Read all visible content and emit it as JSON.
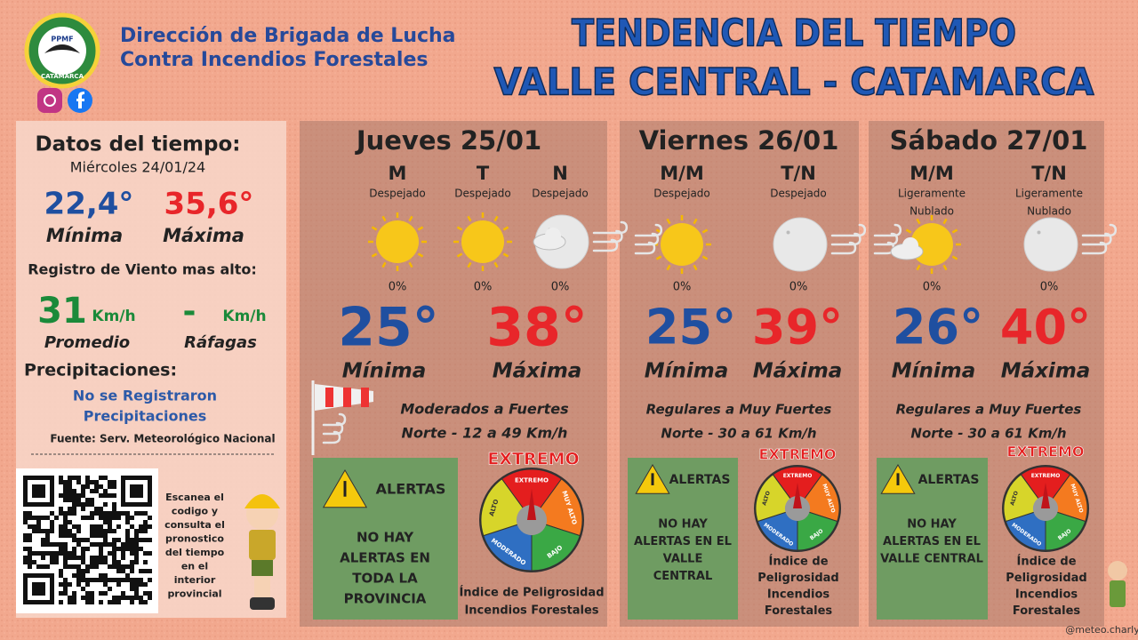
{
  "header": {
    "org_lines": [
      "Dirección de Brigada de Lucha",
      "Contra Incendios Forestales"
    ],
    "title_lines": [
      "TENDENCIA DEL TIEMPO",
      "VALLE CENTRAL - CATAMARCA"
    ],
    "logo_text": "PPMF",
    "logo_place": "CATAMARCA"
  },
  "current": {
    "title": "Datos del tiempo:",
    "date": "Miércoles 24/01/24",
    "min": "22,4°",
    "max": "35,6°",
    "min_label": "Mínima",
    "max_label": "Máxima",
    "wind_title": "Registro de Viento mas alto:",
    "wind_avg": "31",
    "wind_avg_unit": "Km/h",
    "wind_gust": "-",
    "wind_gust_unit": "Km/h",
    "avg_label": "Promedio",
    "gust_label": "Ráfagas",
    "precip_title": "Precipitaciones:",
    "precip_lines": [
      "No se Registraron",
      "Precipitaciones"
    ],
    "source": "Fuente: Serv. Meteorológico Nacional"
  },
  "qr_lines": [
    "Escanea el",
    "codigo y",
    "consulta el",
    "pronostico",
    "del tiempo",
    "en el",
    "interior",
    "provincial"
  ],
  "days": [
    {
      "title": "Jueves 25/01",
      "periods": [
        {
          "label": "M",
          "sky": [
            "Despejado"
          ],
          "precip": "0%"
        },
        {
          "label": "T",
          "sky": [
            "Despejado"
          ],
          "precip": "0%"
        },
        {
          "label": "N",
          "sky": [
            "Despejado"
          ],
          "precip": "0%"
        }
      ],
      "min": "25°",
      "max": "38°",
      "min_label": "Mínima",
      "max_label": "Máxima",
      "wind_lines": [
        "Moderados a Fuertes",
        "Norte - 12 a 49 Km/h"
      ],
      "alert_title": "ALERTAS",
      "alert_lines": [
        "NO HAY",
        "ALERTAS EN",
        "TODA LA",
        "PROVINCIA"
      ],
      "danger_level": "EXTREMO",
      "index_lines": [
        "Índice de Peligrosidad",
        "Incendios Forestales"
      ]
    },
    {
      "title": "Viernes 26/01",
      "periods": [
        {
          "label": "M/M",
          "sky": [
            "Despejado"
          ],
          "precip": "0%"
        },
        {
          "label": "T/N",
          "sky": [
            "Despejado"
          ],
          "precip": "0%"
        }
      ],
      "min": "25°",
      "max": "39°",
      "min_label": "Mínima",
      "max_label": "Máxima",
      "wind_lines": [
        "Regulares a Muy Fuertes",
        "Norte - 30 a 61 Km/h"
      ],
      "alert_title": "ALERTAS",
      "alert_lines": [
        "NO HAY",
        "ALERTAS EN EL",
        "VALLE",
        "CENTRAL"
      ],
      "danger_level": "EXTREMO",
      "index_lines": [
        "Índice de",
        "Peligrosidad",
        "Incendios",
        "Forestales"
      ]
    },
    {
      "title": "Sábado 27/01",
      "periods": [
        {
          "label": "M/M",
          "sky": [
            "Ligeramente",
            "Nublado"
          ],
          "precip": "0%"
        },
        {
          "label": "T/N",
          "sky": [
            "Ligeramente",
            "Nublado"
          ],
          "precip": "0%"
        }
      ],
      "min": "26°",
      "max": "40°",
      "min_label": "Mínima",
      "max_label": "Máxima",
      "wind_lines": [
        "Regulares a Muy Fuertes",
        "Norte - 30 a 61 Km/h"
      ],
      "alert_title": "ALERTAS",
      "alert_lines": [
        "NO HAY",
        "ALERTAS EN EL",
        "VALLE CENTRAL"
      ],
      "danger_level": "EXTREMO",
      "index_lines": [
        "Índice de",
        "Peligrosidad",
        "Incendios",
        "Forestales"
      ]
    }
  ],
  "gauge_labels": [
    "EXTREMO",
    "MUY ALTO",
    "BAJO",
    "MODERADO",
    "ALTO"
  ],
  "footer": {
    "handle": "@meteo.charly"
  }
}
